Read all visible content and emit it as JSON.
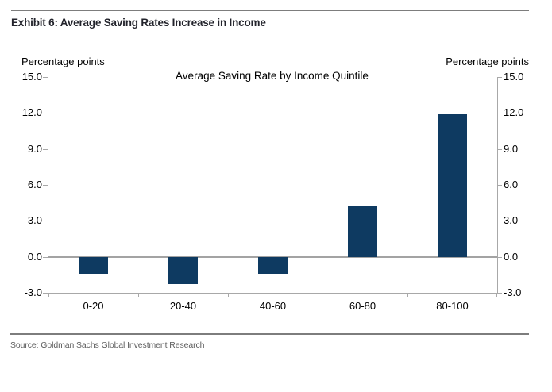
{
  "header": {
    "exhibit_title": "Exhibit 6: Average Saving Rates Increase in Income"
  },
  "chart_data": {
    "type": "bar",
    "title": "Average Saving Rate by Income Quintile",
    "left_axis_label": "Percentage points",
    "right_axis_label": "Percentage points",
    "categories": [
      "0-20",
      "20-40",
      "40-60",
      "60-80",
      "80-100"
    ],
    "values": [
      -1.4,
      -2.3,
      -1.4,
      4.2,
      11.9
    ],
    "xlabel": "",
    "ylabel": "Percentage points",
    "ylim": [
      -3,
      15
    ],
    "yticks": [
      15,
      12,
      9,
      6,
      3,
      0,
      -3
    ],
    "ytick_labels": [
      "15.0",
      "12.0",
      "9.0",
      "6.0",
      "3.0",
      "0.0",
      "-3.0"
    ],
    "bar_color": "#0e3a61",
    "axis_color": "#a8a8a8",
    "grid": "horizontal line at zero only",
    "legend_position": "none"
  },
  "footer": {
    "source": "Source: Goldman Sachs Global Investment Research"
  }
}
